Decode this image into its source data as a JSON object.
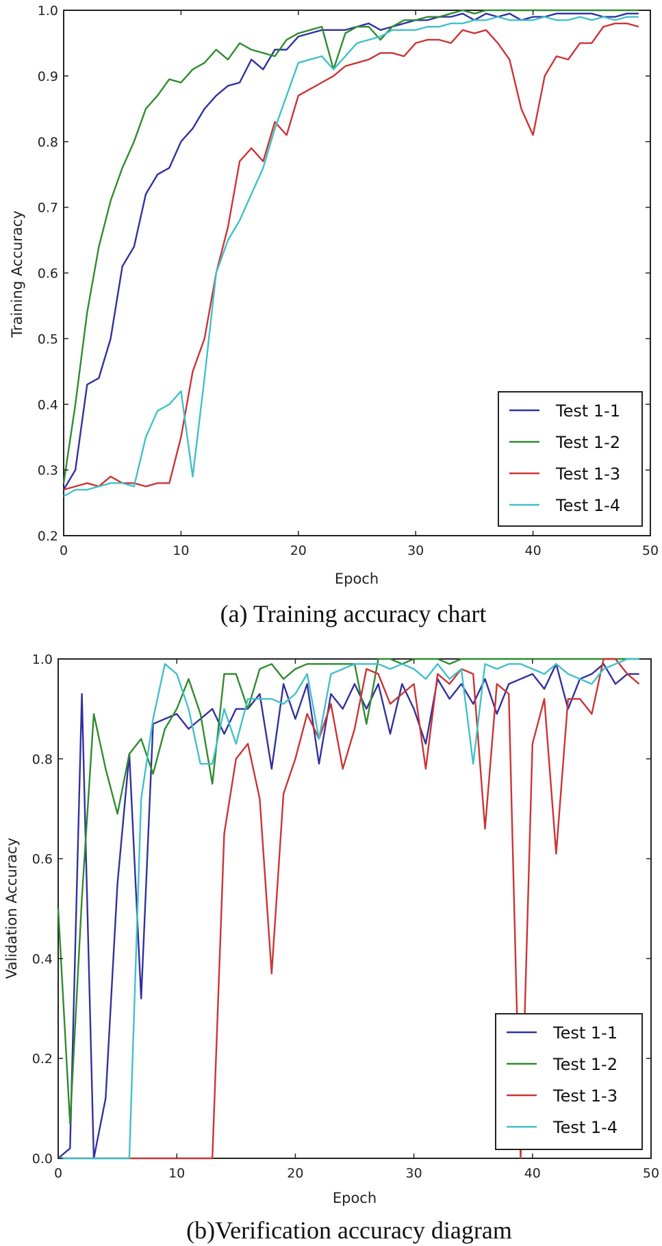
{
  "chart_data": [
    {
      "type": "line",
      "id": "a",
      "caption": "(a) Training accuracy chart",
      "xlabel": "Epoch",
      "ylabel": "Training Accuracy",
      "xlim": [
        0,
        50
      ],
      "ylim": [
        0.2,
        1.0
      ],
      "xticks": [
        "0",
        "10",
        "20",
        "30",
        "40",
        "50"
      ],
      "xtick_values": [
        0,
        10,
        20,
        30,
        40,
        50
      ],
      "yticks": [
        "0.2",
        "0.3",
        "0.4",
        "0.5",
        "0.6",
        "0.7",
        "0.8",
        "0.9",
        "1.0"
      ],
      "ytick_values": [
        0.2,
        0.3,
        0.4,
        0.5,
        0.6,
        0.7,
        0.8,
        0.9,
        1.0
      ],
      "legend_position": "bottom-right",
      "x": [
        0,
        1,
        2,
        3,
        4,
        5,
        6,
        7,
        8,
        9,
        10,
        11,
        12,
        13,
        14,
        15,
        16,
        17,
        18,
        19,
        20,
        21,
        22,
        23,
        24,
        25,
        26,
        27,
        28,
        29,
        30,
        31,
        32,
        33,
        34,
        35,
        36,
        37,
        38,
        39,
        40,
        41,
        42,
        43,
        44,
        45,
        46,
        47,
        48,
        49
      ],
      "series": [
        {
          "name": "Test 1-1",
          "color": "#3030a0",
          "values": [
            0.27,
            0.3,
            0.43,
            0.44,
            0.5,
            0.61,
            0.64,
            0.72,
            0.75,
            0.76,
            0.8,
            0.82,
            0.85,
            0.87,
            0.885,
            0.89,
            0.925,
            0.91,
            0.94,
            0.94,
            0.96,
            0.965,
            0.97,
            0.97,
            0.97,
            0.975,
            0.98,
            0.97,
            0.975,
            0.98,
            0.985,
            0.985,
            0.99,
            0.99,
            0.995,
            0.985,
            0.995,
            0.99,
            0.995,
            0.985,
            0.99,
            0.99,
            0.995,
            0.995,
            0.995,
            0.995,
            0.99,
            0.99,
            0.995,
            0.995
          ]
        },
        {
          "name": "Test 1-2",
          "color": "#2e8b2e",
          "values": [
            0.28,
            0.4,
            0.54,
            0.64,
            0.71,
            0.76,
            0.8,
            0.85,
            0.87,
            0.895,
            0.89,
            0.91,
            0.92,
            0.94,
            0.925,
            0.95,
            0.94,
            0.935,
            0.93,
            0.955,
            0.965,
            0.97,
            0.975,
            0.91,
            0.965,
            0.975,
            0.975,
            0.955,
            0.975,
            0.985,
            0.985,
            0.99,
            0.99,
            0.995,
            1.0,
            0.995,
            1.0,
            1.0,
            1.0,
            1.0,
            1.0,
            1.0,
            1.0,
            1.0,
            1.0,
            1.0,
            1.0,
            1.0,
            1.0,
            1.0
          ]
        },
        {
          "name": "Test 1-3",
          "color": "#cc3333",
          "values": [
            0.27,
            0.275,
            0.28,
            0.275,
            0.29,
            0.28,
            0.28,
            0.275,
            0.28,
            0.28,
            0.35,
            0.45,
            0.5,
            0.6,
            0.67,
            0.77,
            0.79,
            0.77,
            0.83,
            0.81,
            0.87,
            0.88,
            0.89,
            0.9,
            0.915,
            0.92,
            0.925,
            0.935,
            0.935,
            0.93,
            0.95,
            0.955,
            0.955,
            0.95,
            0.97,
            0.965,
            0.97,
            0.95,
            0.925,
            0.85,
            0.81,
            0.9,
            0.93,
            0.925,
            0.95,
            0.95,
            0.975,
            0.98,
            0.98,
            0.975
          ]
        },
        {
          "name": "Test 1-4",
          "color": "#40c0c8",
          "values": [
            0.26,
            0.27,
            0.27,
            0.275,
            0.28,
            0.28,
            0.275,
            0.35,
            0.39,
            0.4,
            0.42,
            0.29,
            0.44,
            0.6,
            0.65,
            0.68,
            0.72,
            0.76,
            0.82,
            0.87,
            0.92,
            0.925,
            0.93,
            0.91,
            0.93,
            0.95,
            0.955,
            0.96,
            0.97,
            0.97,
            0.97,
            0.975,
            0.975,
            0.98,
            0.98,
            0.985,
            0.985,
            0.99,
            0.985,
            0.985,
            0.985,
            0.99,
            0.985,
            0.985,
            0.99,
            0.985,
            0.99,
            0.985,
            0.99,
            0.99
          ]
        }
      ]
    },
    {
      "type": "line",
      "id": "b",
      "caption": "(b)Verification accuracy diagram",
      "xlabel": "Epoch",
      "ylabel": "Validation Accuracy",
      "xlim": [
        0,
        50
      ],
      "ylim": [
        0.0,
        1.0
      ],
      "xticks": [
        "0",
        "10",
        "20",
        "30",
        "40",
        "50"
      ],
      "xtick_values": [
        0,
        10,
        20,
        30,
        40,
        50
      ],
      "yticks": [
        "0.0",
        "0.2",
        "0.4",
        "0.6",
        "0.8",
        "1.0"
      ],
      "ytick_values": [
        0.0,
        0.2,
        0.4,
        0.6,
        0.8,
        1.0
      ],
      "legend_position": "bottom-right",
      "x": [
        0,
        1,
        2,
        3,
        4,
        5,
        6,
        7,
        8,
        9,
        10,
        11,
        12,
        13,
        14,
        15,
        16,
        17,
        18,
        19,
        20,
        21,
        22,
        23,
        24,
        25,
        26,
        27,
        28,
        29,
        30,
        31,
        32,
        33,
        34,
        35,
        36,
        37,
        38,
        39,
        40,
        41,
        42,
        43,
        44,
        45,
        46,
        47,
        48,
        49
      ],
      "series": [
        {
          "name": "Test 1-1",
          "color": "#3030a0",
          "values": [
            0.0,
            0.02,
            0.93,
            0.0,
            0.12,
            0.55,
            0.81,
            0.32,
            0.87,
            0.88,
            0.89,
            0.86,
            0.88,
            0.9,
            0.85,
            0.9,
            0.9,
            0.93,
            0.78,
            0.95,
            0.88,
            0.95,
            0.79,
            0.93,
            0.9,
            0.95,
            0.9,
            0.95,
            0.85,
            0.95,
            0.9,
            0.83,
            0.96,
            0.92,
            0.95,
            0.91,
            0.96,
            0.89,
            0.95,
            0.96,
            0.97,
            0.94,
            0.99,
            0.9,
            0.96,
            0.97,
            0.99,
            0.95,
            0.97,
            0.97
          ]
        },
        {
          "name": "Test 1-2",
          "color": "#2e8b2e",
          "values": [
            0.5,
            0.07,
            0.52,
            0.89,
            0.78,
            0.69,
            0.81,
            0.84,
            0.77,
            0.86,
            0.9,
            0.96,
            0.89,
            0.75,
            0.97,
            0.97,
            0.9,
            0.98,
            0.99,
            0.96,
            0.98,
            0.99,
            0.99,
            0.99,
            0.99,
            0.99,
            0.87,
            1.0,
            1.0,
            0.99,
            1.0,
            1.0,
            1.0,
            0.99,
            1.0,
            1.0,
            1.0,
            1.0,
            1.0,
            1.0,
            1.0,
            1.0,
            1.0,
            1.0,
            1.0,
            1.0,
            1.0,
            1.0,
            1.0,
            1.0
          ]
        },
        {
          "name": "Test 1-3",
          "color": "#cc3333",
          "values": [
            0.0,
            0.0,
            0.0,
            0.0,
            0.0,
            0.0,
            0.0,
            0.0,
            0.0,
            0.0,
            0.0,
            0.0,
            0.0,
            0.0,
            0.65,
            0.8,
            0.83,
            0.72,
            0.37,
            0.73,
            0.8,
            0.89,
            0.84,
            0.91,
            0.78,
            0.86,
            0.98,
            0.97,
            0.91,
            0.93,
            0.95,
            0.78,
            0.97,
            0.95,
            0.98,
            0.97,
            0.66,
            0.95,
            0.93,
            0.0,
            0.83,
            0.92,
            0.61,
            0.92,
            0.92,
            0.89,
            1.0,
            1.0,
            0.97,
            0.95
          ]
        },
        {
          "name": "Test 1-4",
          "color": "#40c0c8",
          "values": [
            0.0,
            0.0,
            0.0,
            0.0,
            0.0,
            0.0,
            0.0,
            0.72,
            0.88,
            0.99,
            0.97,
            0.9,
            0.79,
            0.79,
            0.9,
            0.83,
            0.92,
            0.92,
            0.92,
            0.91,
            0.93,
            0.97,
            0.84,
            0.97,
            0.98,
            0.99,
            0.99,
            0.99,
            0.98,
            0.99,
            0.98,
            0.96,
            0.99,
            0.96,
            0.98,
            0.79,
            0.99,
            0.98,
            0.99,
            0.99,
            0.98,
            0.97,
            0.99,
            0.97,
            0.96,
            0.95,
            0.98,
            0.99,
            1.0,
            1.0
          ]
        }
      ]
    }
  ]
}
